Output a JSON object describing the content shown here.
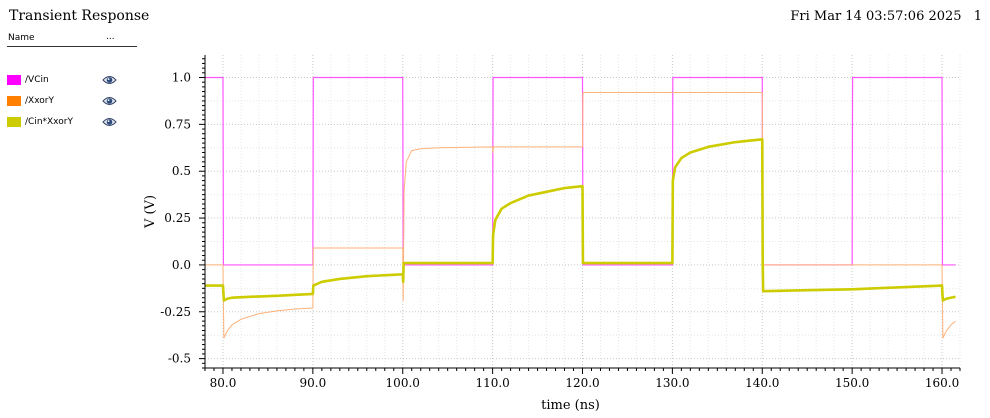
{
  "window": {
    "title": "Transient Response",
    "timestamp": "Fri Mar 14 03:57:06 2025",
    "page_number": "1"
  },
  "legend": {
    "header_name": "Name",
    "header_more": "...",
    "items": [
      {
        "label": "/VCin",
        "color": "#ff00ff",
        "icon": "eye-icon"
      },
      {
        "label": "/XxorY",
        "color": "#ff8000",
        "icon": "eye-icon"
      },
      {
        "label": "/Cin*XxorY",
        "color": "#cccc00",
        "icon": "eye-icon"
      }
    ]
  },
  "chart_data": {
    "type": "line",
    "xlabel": "time (ns)",
    "ylabel": "V (V)",
    "xlim": [
      78.0,
      162.0
    ],
    "ylim": [
      -0.55,
      1.12
    ],
    "xticks": [
      "80.0",
      "90.0",
      "100.0",
      "110.0",
      "120.0",
      "130.0",
      "140.0",
      "150.0",
      "160.0"
    ],
    "xtick_values": [
      80,
      90,
      100,
      110,
      120,
      130,
      140,
      150,
      160
    ],
    "yticks": [
      "1.0",
      "0.75",
      "0.5",
      "0.25",
      "0.0",
      "-0.25",
      "-0.5"
    ],
    "ytick_values": [
      1.0,
      0.75,
      0.5,
      0.25,
      0.0,
      -0.25,
      -0.5
    ],
    "grid": true,
    "series": [
      {
        "name": "/VCin",
        "color": "#ff55ff",
        "points": [
          [
            78.0,
            1.0
          ],
          [
            80.0,
            1.0
          ],
          [
            80.05,
            0.0
          ],
          [
            90.0,
            0.0
          ],
          [
            90.05,
            1.0
          ],
          [
            100.0,
            1.0
          ],
          [
            100.05,
            0.0
          ],
          [
            110.0,
            0.0
          ],
          [
            110.05,
            1.0
          ],
          [
            120.0,
            1.0
          ],
          [
            120.05,
            0.0
          ],
          [
            130.0,
            0.0
          ],
          [
            130.05,
            1.0
          ],
          [
            140.0,
            1.0
          ],
          [
            140.05,
            0.0
          ],
          [
            150.0,
            0.0
          ],
          [
            150.05,
            1.0
          ],
          [
            160.0,
            1.0
          ],
          [
            160.05,
            0.0
          ],
          [
            161.5,
            0.0
          ]
        ]
      },
      {
        "name": "/XxorY",
        "color": "#ffb27a",
        "points": [
          [
            78.0,
            0.0
          ],
          [
            80.0,
            0.0
          ],
          [
            80.1,
            -0.39
          ],
          [
            80.5,
            -0.35
          ],
          [
            81.0,
            -0.32
          ],
          [
            82.0,
            -0.29
          ],
          [
            84.0,
            -0.26
          ],
          [
            86.0,
            -0.245
          ],
          [
            88.0,
            -0.235
          ],
          [
            90.0,
            -0.23
          ],
          [
            90.05,
            0.09
          ],
          [
            100.0,
            0.09
          ],
          [
            100.05,
            -0.19
          ],
          [
            100.15,
            0.4
          ],
          [
            100.4,
            0.55
          ],
          [
            101.0,
            0.61
          ],
          [
            102.0,
            0.62
          ],
          [
            104.0,
            0.625
          ],
          [
            110.0,
            0.63
          ],
          [
            110.05,
            0.6
          ],
          [
            110.1,
            0.63
          ],
          [
            120.0,
            0.63
          ],
          [
            120.05,
            0.92
          ],
          [
            140.0,
            0.92
          ],
          [
            140.05,
            0.0
          ],
          [
            160.0,
            0.0
          ],
          [
            160.1,
            -0.39
          ],
          [
            160.5,
            -0.35
          ],
          [
            161.0,
            -0.32
          ],
          [
            161.5,
            -0.3
          ]
        ]
      },
      {
        "name": "/Cin*XxorY",
        "color": "#cccc00",
        "points": [
          [
            78.0,
            -0.11
          ],
          [
            80.0,
            -0.11
          ],
          [
            80.1,
            -0.19
          ],
          [
            80.5,
            -0.18
          ],
          [
            81.0,
            -0.175
          ],
          [
            83.0,
            -0.17
          ],
          [
            86.0,
            -0.165
          ],
          [
            90.0,
            -0.155
          ],
          [
            90.05,
            -0.11
          ],
          [
            91.0,
            -0.09
          ],
          [
            93.0,
            -0.075
          ],
          [
            96.0,
            -0.06
          ],
          [
            100.0,
            -0.05
          ],
          [
            100.05,
            -0.09
          ],
          [
            100.1,
            0.01
          ],
          [
            110.0,
            0.01
          ],
          [
            110.05,
            0.16
          ],
          [
            110.3,
            0.24
          ],
          [
            111.0,
            0.3
          ],
          [
            112.0,
            0.33
          ],
          [
            114.0,
            0.37
          ],
          [
            116.0,
            0.39
          ],
          [
            118.0,
            0.41
          ],
          [
            120.0,
            0.42
          ],
          [
            120.05,
            0.01
          ],
          [
            130.0,
            0.01
          ],
          [
            130.05,
            0.45
          ],
          [
            130.3,
            0.52
          ],
          [
            131.0,
            0.57
          ],
          [
            132.0,
            0.6
          ],
          [
            134.0,
            0.63
          ],
          [
            137.0,
            0.655
          ],
          [
            140.0,
            0.67
          ],
          [
            140.05,
            0.01
          ],
          [
            140.1,
            -0.14
          ],
          [
            145.0,
            -0.135
          ],
          [
            150.0,
            -0.13
          ],
          [
            155.0,
            -0.12
          ],
          [
            160.0,
            -0.11
          ],
          [
            160.05,
            -0.16
          ],
          [
            160.1,
            -0.19
          ],
          [
            160.5,
            -0.18
          ],
          [
            161.5,
            -0.17
          ]
        ]
      }
    ]
  }
}
